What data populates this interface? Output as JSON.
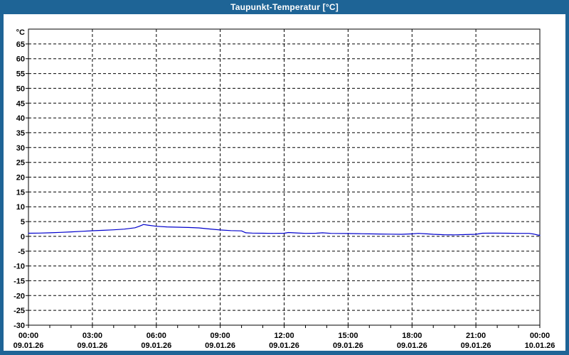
{
  "window": {
    "title": "Taupunkt-Temperatur [°C]"
  },
  "colors": {
    "frame": "#1e6496",
    "titlebar_bg": "#1e6496",
    "title_text": "#ffffff",
    "plot_background": "#ffffff",
    "grid": "#000000",
    "axis": "#000000",
    "line": "#0000cc",
    "label_text": "#000000"
  },
  "chart_data": {
    "type": "line",
    "title": "Taupunkt-Temperatur [°C]",
    "unit_label": "°C",
    "grid": true,
    "legend": "none",
    "ylim": [
      -30,
      70
    ],
    "ytick_step": 5,
    "ytick_labels": [
      65,
      60,
      55,
      50,
      45,
      40,
      35,
      30,
      25,
      20,
      15,
      10,
      5,
      0,
      -5,
      -10,
      -15,
      -20,
      -25,
      -30
    ],
    "xlim_hours": [
      0,
      24
    ],
    "xtick_minor_step_hours": 1,
    "xticks": [
      {
        "hour": 0,
        "time": "00:00",
        "date": "09.01.26"
      },
      {
        "hour": 3,
        "time": "03:00",
        "date": "09.01.26"
      },
      {
        "hour": 6,
        "time": "06:00",
        "date": "09.01.26"
      },
      {
        "hour": 9,
        "time": "09:00",
        "date": "09.01.26"
      },
      {
        "hour": 12,
        "time": "12:00",
        "date": "09.01.26"
      },
      {
        "hour": 15,
        "time": "15:00",
        "date": "09.01.26"
      },
      {
        "hour": 18,
        "time": "18:00",
        "date": "09.01.26"
      },
      {
        "hour": 21,
        "time": "21:00",
        "date": "09.01.26"
      },
      {
        "hour": 24,
        "time": "00:00",
        "date": "10.01.26"
      }
    ],
    "series": [
      {
        "name": "Taupunkt-Temperatur",
        "color": "#0000cc",
        "points": [
          [
            0,
            1.05
          ],
          [
            0.5,
            1.1
          ],
          [
            1,
            1.2
          ],
          [
            1.5,
            1.35
          ],
          [
            2,
            1.5
          ],
          [
            2.5,
            1.7
          ],
          [
            3,
            1.9
          ],
          [
            3.5,
            2.05
          ],
          [
            4,
            2.2
          ],
          [
            4.5,
            2.45
          ],
          [
            5,
            2.9
          ],
          [
            5.2,
            3.4
          ],
          [
            5.4,
            4.0
          ],
          [
            5.6,
            3.8
          ],
          [
            6,
            3.4
          ],
          [
            6.5,
            3.2
          ],
          [
            7,
            3.1
          ],
          [
            7.5,
            3.0
          ],
          [
            8,
            2.85
          ],
          [
            8.5,
            2.5
          ],
          [
            9,
            2.15
          ],
          [
            9.5,
            1.95
          ],
          [
            10,
            1.85
          ],
          [
            10.2,
            1.2
          ],
          [
            10.5,
            1.1
          ],
          [
            11,
            1.05
          ],
          [
            11.5,
            1.0
          ],
          [
            12,
            1.05
          ],
          [
            12.2,
            1.3
          ],
          [
            12.6,
            1.15
          ],
          [
            13,
            1.0
          ],
          [
            13.5,
            1.05
          ],
          [
            13.8,
            1.2
          ],
          [
            14.2,
            1.0
          ],
          [
            15,
            0.95
          ],
          [
            15.5,
            0.9
          ],
          [
            16,
            0.85
          ],
          [
            16.5,
            0.8
          ],
          [
            17,
            0.75
          ],
          [
            17.5,
            0.7
          ],
          [
            18,
            0.85
          ],
          [
            18.3,
            1.0
          ],
          [
            18.7,
            0.85
          ],
          [
            19,
            0.7
          ],
          [
            19.5,
            0.55
          ],
          [
            20,
            0.5
          ],
          [
            20.5,
            0.6
          ],
          [
            21,
            0.7
          ],
          [
            21.3,
            1.05
          ],
          [
            21.8,
            1.1
          ],
          [
            22.5,
            1.05
          ],
          [
            23,
            1.0
          ],
          [
            23.5,
            1.0
          ],
          [
            23.7,
            0.8
          ],
          [
            23.9,
            0.45
          ],
          [
            24,
            0.35
          ]
        ]
      }
    ]
  }
}
